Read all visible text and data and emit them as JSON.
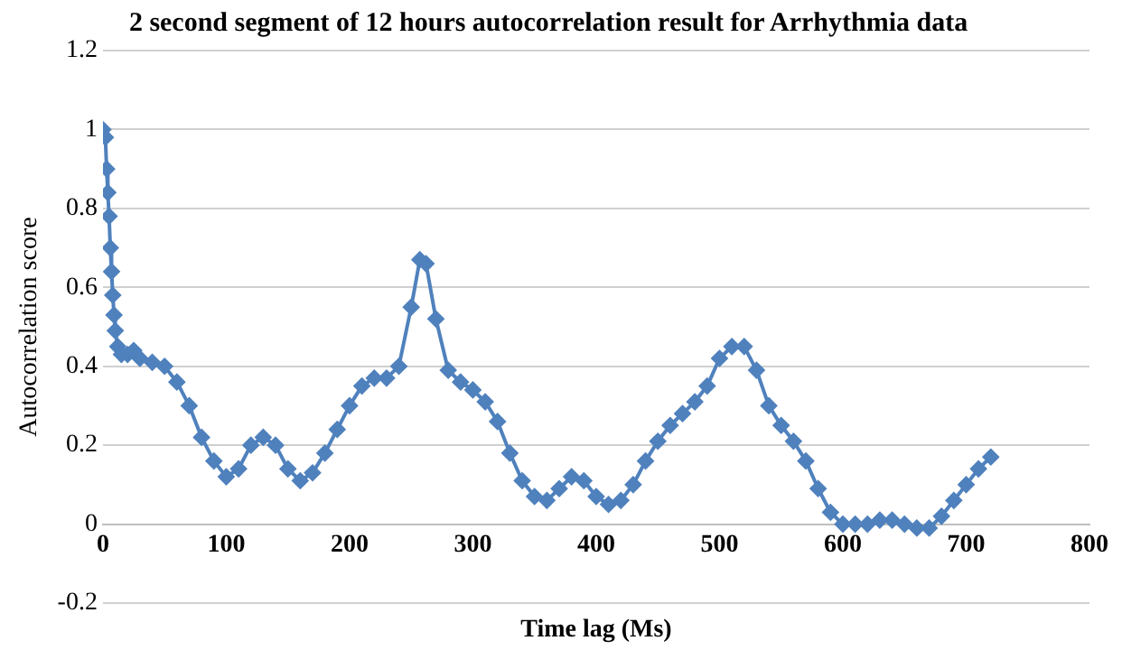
{
  "chart_data": {
    "type": "line",
    "title": "2 second segment of 12 hours autocorrelation result for Arrhythmia data",
    "xlabel": "Time lag (Ms)",
    "ylabel": "Autocorrelation score",
    "x": [
      0,
      2,
      3,
      4,
      5,
      6,
      7,
      8,
      9,
      10,
      12,
      15,
      20,
      25,
      30,
      40,
      50,
      60,
      70,
      80,
      90,
      100,
      110,
      120,
      130,
      140,
      150,
      160,
      170,
      180,
      190,
      200,
      210,
      220,
      230,
      240,
      250,
      257,
      262,
      270,
      280,
      290,
      300,
      310,
      320,
      330,
      340,
      350,
      360,
      370,
      380,
      390,
      400,
      410,
      420,
      430,
      440,
      450,
      460,
      470,
      480,
      490,
      500,
      510,
      520,
      530,
      540,
      550,
      560,
      570,
      580,
      590,
      600,
      610,
      620,
      630,
      640,
      650,
      660,
      670,
      680,
      690,
      700,
      710,
      720
    ],
    "series": [
      {
        "color": "#4f81bd",
        "values": [
          1.0,
          0.98,
          0.9,
          0.84,
          0.78,
          0.7,
          0.64,
          0.58,
          0.53,
          0.49,
          0.45,
          0.43,
          0.43,
          0.44,
          0.42,
          0.41,
          0.4,
          0.36,
          0.3,
          0.22,
          0.16,
          0.12,
          0.14,
          0.2,
          0.22,
          0.2,
          0.14,
          0.11,
          0.13,
          0.18,
          0.24,
          0.3,
          0.35,
          0.37,
          0.37,
          0.4,
          0.55,
          0.67,
          0.66,
          0.52,
          0.39,
          0.36,
          0.34,
          0.31,
          0.26,
          0.18,
          0.11,
          0.07,
          0.06,
          0.09,
          0.12,
          0.11,
          0.07,
          0.05,
          0.06,
          0.1,
          0.16,
          0.21,
          0.25,
          0.28,
          0.31,
          0.35,
          0.42,
          0.45,
          0.45,
          0.39,
          0.3,
          0.25,
          0.21,
          0.16,
          0.09,
          0.03,
          0.0,
          0.0,
          0.0,
          0.01,
          0.01,
          0.0,
          -0.01,
          -0.01,
          0.02,
          0.06,
          0.1,
          0.14,
          0.17
        ]
      }
    ],
    "xlim": [
      0,
      800
    ],
    "xticks": [
      0,
      100,
      200,
      300,
      400,
      500,
      600,
      700,
      800
    ],
    "ylim": [
      -0.2,
      1.2
    ],
    "yticks": [
      -0.2,
      0,
      0.2,
      0.4,
      0.6,
      0.8,
      1,
      1.2
    ],
    "grid": "y",
    "legend": false,
    "marker": "diamond",
    "line_style": "solid"
  }
}
